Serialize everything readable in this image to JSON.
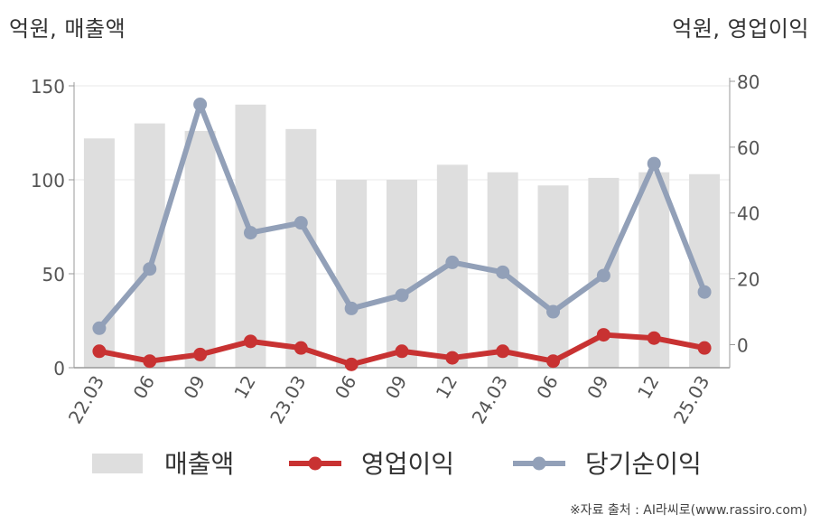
{
  "unit_left": "억원, 매출액",
  "unit_right": "억원, 영업이익",
  "source": "※자료 출처 : AI라씨로(www.rassiro.com)",
  "colors": {
    "bar": "#dedede",
    "operating_profit": "#c83232",
    "net_income": "#92a0b8",
    "axis": "#999999",
    "grid": "#e8e8e8"
  },
  "chart_data": {
    "type": "bar",
    "categories": [
      "22.03",
      "06",
      "09",
      "12",
      "23.03",
      "06",
      "09",
      "12",
      "24.03",
      "06",
      "09",
      "12",
      "25.03"
    ],
    "y_left": {
      "ticks": [
        0,
        50,
        100,
        150
      ],
      "ylim": [
        0,
        150
      ]
    },
    "y_right": {
      "ticks": [
        0,
        20,
        40,
        60,
        80
      ],
      "ylim": [
        -7,
        80
      ]
    },
    "series": [
      {
        "name": "매출액",
        "type": "bar",
        "axis": "left",
        "values": [
          122,
          130,
          126,
          140,
          127,
          100,
          100,
          108,
          104,
          97,
          101,
          104,
          103
        ]
      },
      {
        "name": "영업이익",
        "type": "line",
        "axis": "right",
        "values": [
          -2,
          -5,
          -3,
          1,
          -1,
          -6,
          -2,
          -4,
          -2,
          -5,
          3,
          2,
          -1
        ]
      },
      {
        "name": "당기순이익",
        "type": "line",
        "axis": "right",
        "values": [
          5,
          23,
          73,
          34,
          37,
          11,
          15,
          25,
          22,
          10,
          21,
          55,
          16
        ]
      }
    ]
  }
}
